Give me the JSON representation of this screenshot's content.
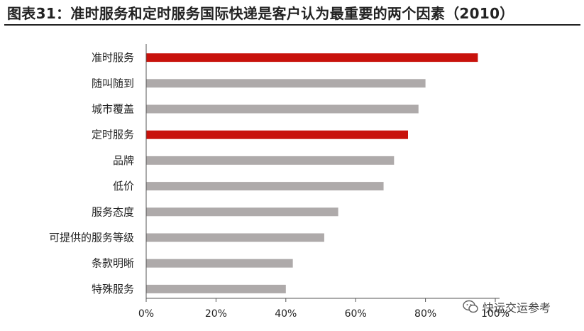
{
  "page": {
    "title": "图表31：准时服务和定时服务国际快递是客户认为最重要的两个因素（2010）",
    "watermark": "快运交运参考"
  },
  "colors": {
    "highlight": "#c8120c",
    "normal": "#aeaaaa",
    "axis": "#555555",
    "text": "#222222"
  },
  "chart_data": {
    "type": "bar",
    "orientation": "horizontal",
    "title": "",
    "xlabel": "",
    "ylabel": "",
    "categories": [
      "准时服务",
      "随叫随到",
      "城市覆盖",
      "定时服务",
      "品牌",
      "低价",
      "服务态度",
      "可提供的服务等级",
      "条款明晰",
      "特殊服务"
    ],
    "values": [
      0.95,
      0.8,
      0.78,
      0.75,
      0.71,
      0.68,
      0.55,
      0.51,
      0.42,
      0.4
    ],
    "highlighted": [
      true,
      false,
      false,
      true,
      false,
      false,
      false,
      false,
      false,
      false
    ],
    "xlim": [
      0,
      1.0
    ],
    "xticks": [
      0,
      0.2,
      0.4,
      0.6,
      0.8,
      1.0
    ],
    "xtick_labels": [
      "0%",
      "20%",
      "40%",
      "60%",
      "80%",
      "100%"
    ],
    "grid": false,
    "legend": "none"
  }
}
